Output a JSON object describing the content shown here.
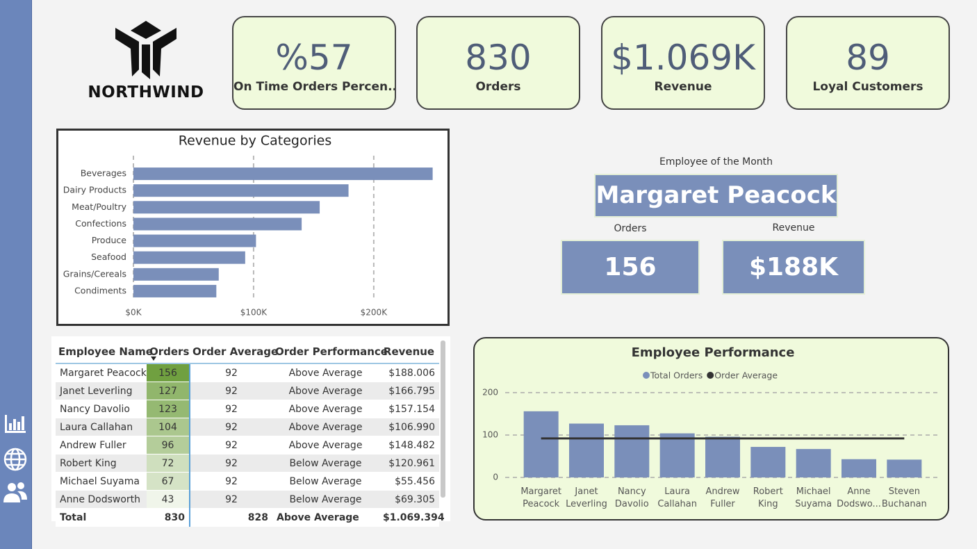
{
  "logo": {
    "text": "NORTHWIND"
  },
  "kpis": [
    {
      "value": "%57",
      "label": "On Time Orders Percen..."
    },
    {
      "value": "830",
      "label": "Orders"
    },
    {
      "value": "$1.069K",
      "label": "Revenue"
    },
    {
      "value": "89",
      "label": "Loyal Customers"
    }
  ],
  "chart_data": [
    {
      "type": "barh",
      "title": "Revenue by Categories",
      "categories": [
        "Beverages",
        "Dairy Products",
        "Meat/Poultry",
        "Confections",
        "Produce",
        "Seafood",
        "Grains/Cereals",
        "Condiments"
      ],
      "values": [
        249000,
        179000,
        155000,
        140000,
        102000,
        93000,
        71000,
        69000
      ],
      "color": "#7a8fba",
      "xlim": [
        0,
        255000
      ],
      "xticks": [
        {
          "value": 0,
          "label": "$0K"
        },
        {
          "value": 100000,
          "label": "$100K"
        },
        {
          "value": 200000,
          "label": "$200K"
        }
      ],
      "grid": true
    },
    {
      "type": "bar",
      "title": "Employee Performance",
      "categories": [
        "Margaret Peacock",
        "Janet Leverling",
        "Nancy Davolio",
        "Laura Callahan",
        "Andrew Fuller",
        "Robert King",
        "Michael Suyama",
        "Anne Dodswo...",
        "Steven Buchanan"
      ],
      "series": [
        {
          "name": "Total Orders",
          "type": "bar",
          "color": "#7a8fba",
          "values": [
            156,
            127,
            123,
            104,
            96,
            72,
            67,
            43,
            42
          ]
        },
        {
          "name": "Order Average",
          "type": "line",
          "color": "#333333",
          "values": [
            92,
            92,
            92,
            92,
            92,
            92,
            92,
            92,
            92
          ]
        }
      ],
      "ylim": [
        0,
        200
      ],
      "yticks": [
        0,
        100,
        200
      ],
      "grid": true,
      "legend": "top"
    }
  ],
  "employee_of_month": {
    "title": "Employee of the Month",
    "name": "Margaret Peacock",
    "orders_label": "Orders",
    "orders": "156",
    "revenue_label": "Revenue",
    "revenue": "$188K"
  },
  "table": {
    "columns": [
      "Employee Name",
      "Orders",
      "Order Average",
      "Order Performance",
      "Revenue"
    ],
    "rows": [
      [
        "Margaret Peacock",
        156,
        92,
        "Above Average",
        "$188.006"
      ],
      [
        "Janet Leverling",
        127,
        92,
        "Above Average",
        "$166.795"
      ],
      [
        "Nancy Davolio",
        123,
        92,
        "Above Average",
        "$157.154"
      ],
      [
        "Laura Callahan",
        104,
        92,
        "Above Average",
        "$106.990"
      ],
      [
        "Andrew Fuller",
        96,
        92,
        "Above Average",
        "$148.482"
      ],
      [
        "Robert King",
        72,
        92,
        "Below Average",
        "$120.961"
      ],
      [
        "Michael Suyama",
        67,
        92,
        "Below Average",
        "$55.456"
      ],
      [
        "Anne Dodsworth",
        43,
        92,
        "Below Average",
        "$69.305"
      ]
    ],
    "total": [
      "Total",
      830,
      828,
      "Above Average",
      "$1.069.394"
    ]
  }
}
